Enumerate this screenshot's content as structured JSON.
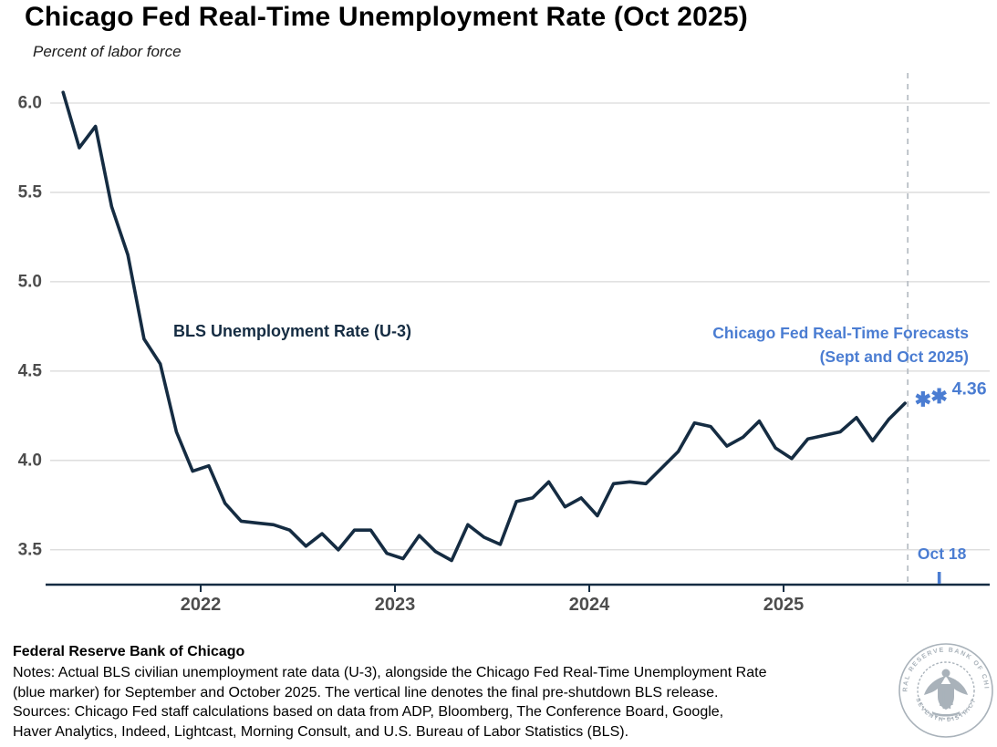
{
  "header": {
    "title": "Chicago Fed Real-Time Unemployment Rate (Oct 2025)",
    "subtitle": "Percent of labor force"
  },
  "colors": {
    "line_navy": "#152c42",
    "forecast_blue": "#4b7dd2",
    "gridline": "#d9d9d9",
    "dashed_line": "#b9bfc6",
    "tick_label": "#4d4d4d",
    "seal_gray": "#a9b2ba"
  },
  "chart_data": {
    "type": "line",
    "title": "Chicago Fed Real-Time Unemployment Rate (Oct 2025)",
    "subtitle": "Percent of labor force",
    "ylabel": "Percent of labor force",
    "ylim": [
      3.35,
      6.15
    ],
    "yticks": [
      6.0,
      5.5,
      5.0,
      4.5,
      4.0,
      3.5
    ],
    "x_year_ticks": [
      {
        "label": "2022",
        "month": "2022-01"
      },
      {
        "label": "2023",
        "month": "2023-01"
      },
      {
        "label": "2024",
        "month": "2024-01"
      },
      {
        "label": "2025",
        "month": "2025-01"
      }
    ],
    "grid": "horizontal",
    "legend_position": "in-plot annotations",
    "series": [
      {
        "name": "BLS Unemployment Rate (U-3)",
        "frequency": "monthly",
        "start_month": "2021-04",
        "values": [
          6.06,
          5.75,
          5.87,
          5.42,
          5.15,
          4.68,
          4.54,
          4.16,
          3.94,
          3.97,
          3.76,
          3.66,
          3.65,
          3.64,
          3.61,
          3.52,
          3.59,
          3.5,
          3.61,
          3.61,
          3.48,
          3.45,
          3.58,
          3.49,
          3.44,
          3.64,
          3.57,
          3.53,
          3.77,
          3.79,
          3.88,
          3.74,
          3.79,
          3.69,
          3.87,
          3.88,
          3.87,
          3.96,
          4.05,
          4.21,
          4.19,
          4.08,
          4.13,
          4.22,
          4.07,
          4.01,
          4.12,
          4.14,
          4.16,
          4.24,
          4.11,
          4.23,
          4.32
        ]
      },
      {
        "name": "Chicago Fed Real-Time Forecasts (Sept and Oct 2025)",
        "marker": "asterisk",
        "points": [
          {
            "month": "2025-09",
            "value": 4.34
          },
          {
            "month": "2025-10",
            "value": 4.36
          }
        ]
      }
    ],
    "annotations": {
      "series_label": "BLS Unemployment Rate (U-3)",
      "forecast_label_line1": "Chicago Fed Real-Time Forecasts",
      "forecast_label_line2": "(Sept and Oct 2025)",
      "forecast_value_label": "4.36",
      "cutoff_month": "2025-08",
      "cutoff_tick_label": "Oct 18",
      "cutoff_tick_month": "2025-10"
    }
  },
  "footer": {
    "org": "Federal Reserve Bank of Chicago",
    "lines": [
      "Notes: Actual BLS civilian unemployment rate data (U-3), alongside the Chicago Fed Real-Time Unemployment Rate",
      "(blue marker) for September and October 2025. The vertical line denotes the final pre-shutdown BLS release.",
      "Sources: Chicago Fed staff calculations based on data from ADP, Bloomberg, The Conference Board, Google,",
      "Haver Analytics, Indeed, Lightcast, Morning Consult, and U.S. Bureau of Labor Statistics (BLS)."
    ],
    "seal": {
      "ring_text_top": "FEDERAL RESERVE BANK OF CHICAGO",
      "ring_text_bottom": "SEVENTH DISTRICT"
    }
  }
}
